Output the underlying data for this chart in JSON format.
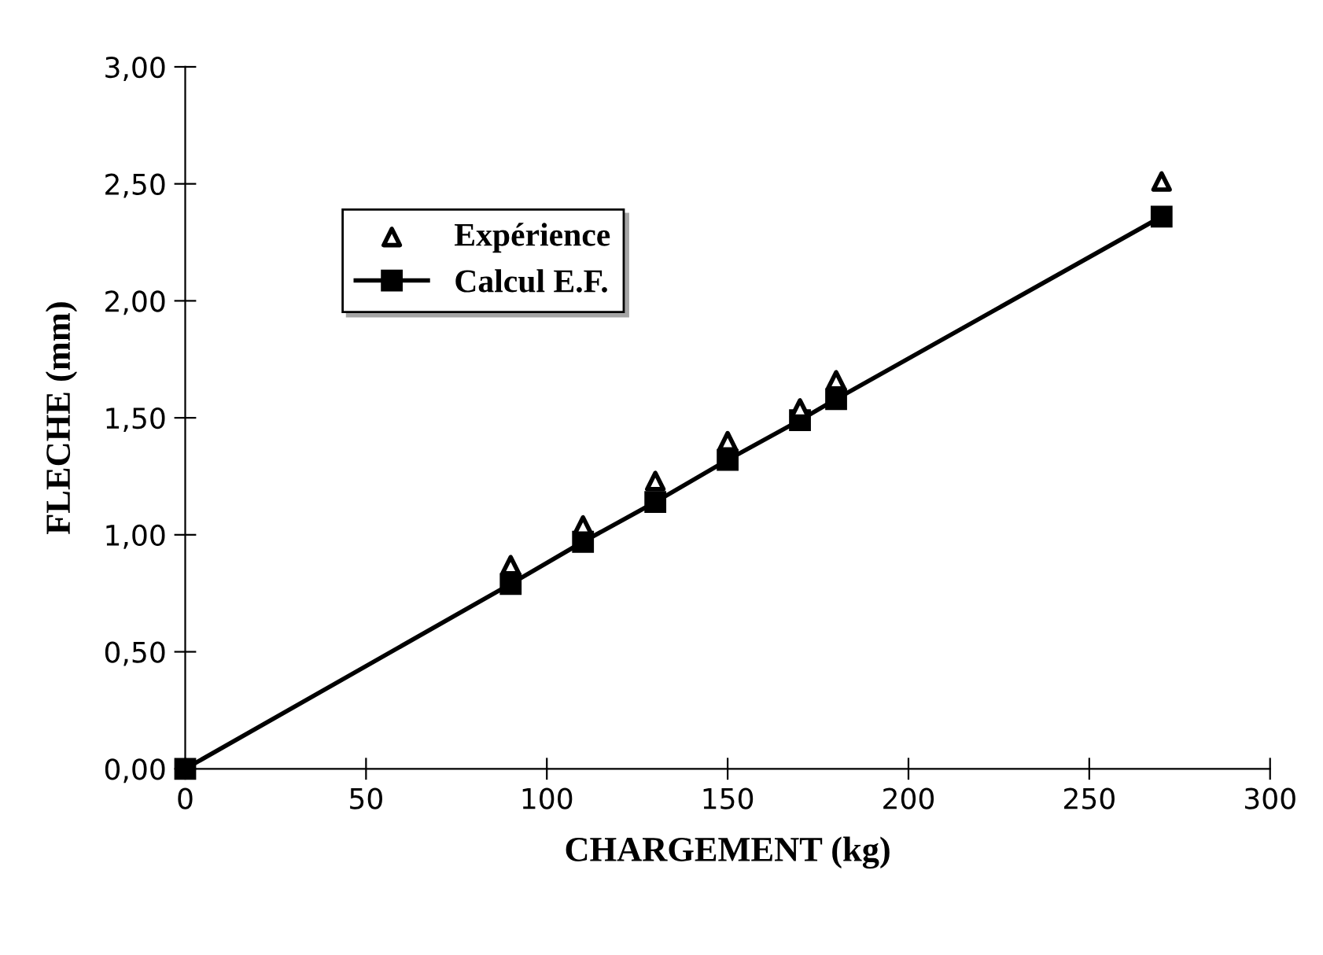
{
  "chart_data": {
    "type": "line",
    "xlabel": "CHARGEMENT (kg)",
    "ylabel": "FLECHE (mm)",
    "xlim": [
      0,
      300
    ],
    "xticks": [
      0,
      50,
      100,
      150,
      200,
      250,
      300
    ],
    "ylim": [
      0,
      3
    ],
    "yticks": [
      {
        "value": 0,
        "label": "0,00"
      },
      {
        "value": 0.5,
        "label": "0,50"
      },
      {
        "value": 1,
        "label": "1,00"
      },
      {
        "value": 1.5,
        "label": "1,50"
      },
      {
        "value": 2,
        "label": "2,00"
      },
      {
        "value": 2.5,
        "label": "2,50"
      },
      {
        "value": 3,
        "label": "3,00"
      }
    ],
    "grid": false,
    "legend": "top left",
    "series": [
      {
        "name": "Expérience",
        "type": "scatter",
        "marker": "triangle",
        "color": "#000000",
        "x": [
          90,
          110,
          130,
          150,
          170,
          180,
          270
        ],
        "values": [
          0.87,
          1.04,
          1.23,
          1.4,
          1.54,
          1.66,
          2.51
        ]
      },
      {
        "name": "Calcul E.F.",
        "marker": "square",
        "line_style": "solid",
        "color": "#000000",
        "x": [
          0,
          90,
          110,
          130,
          150,
          170,
          180,
          270
        ],
        "values": [
          0,
          0.79,
          0.97,
          1.14,
          1.32,
          1.49,
          1.58,
          2.36
        ]
      }
    ]
  }
}
